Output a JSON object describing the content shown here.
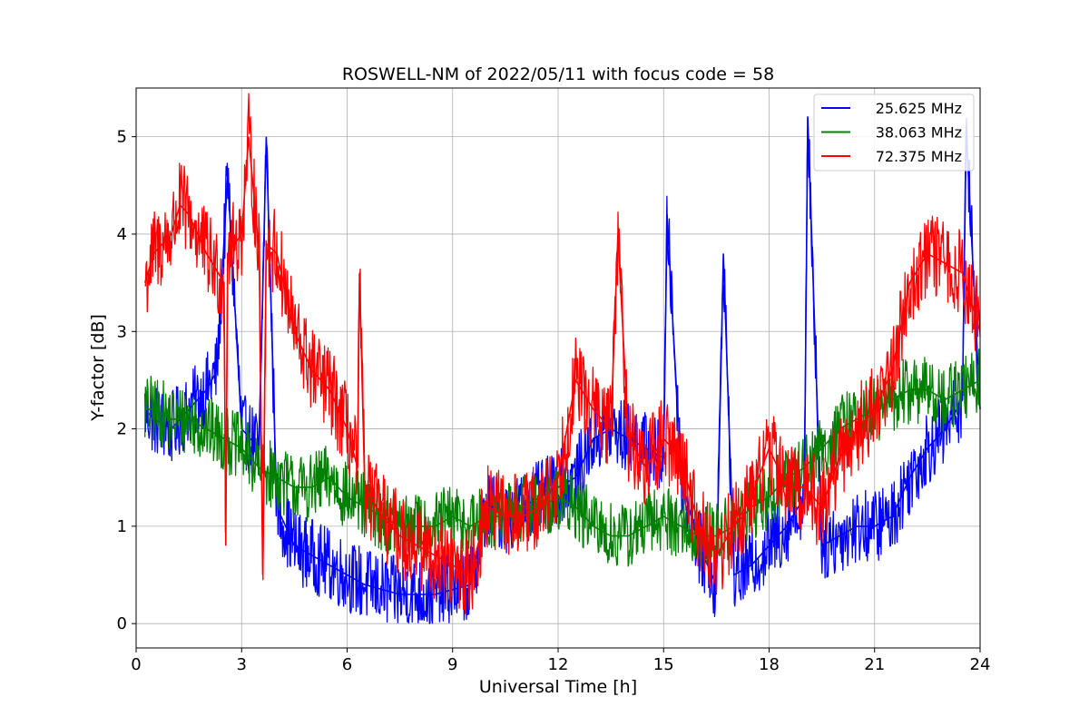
{
  "chart_data": {
    "type": "line",
    "title": "ROSWELL-NM of 2022/05/11 with focus code = 58",
    "xlabel": "Universal Time [h]",
    "ylabel": "Y-factor [dB]",
    "xlim": [
      0,
      24
    ],
    "ylim": [
      -0.25,
      5.5
    ],
    "xticks": [
      0,
      3,
      6,
      9,
      12,
      15,
      18,
      21,
      24
    ],
    "yticks": [
      0,
      1,
      2,
      3,
      4,
      5
    ],
    "grid": true,
    "legend_position": "top-right",
    "series": [
      {
        "name": "25.625 MHz",
        "color": "#0000ff",
        "x": [
          0.25,
          0.5,
          1.0,
          1.5,
          2.0,
          2.3,
          2.6,
          3.0,
          3.5,
          3.7,
          4.0,
          4.5,
          5.0,
          5.5,
          6.0,
          6.5,
          7.0,
          7.5,
          8.0,
          8.5,
          9.0,
          9.5,
          10.0,
          10.5,
          11.0,
          11.5,
          12.0,
          12.5,
          13.0,
          13.5,
          14.0,
          14.5,
          15.0,
          15.1,
          15.5,
          16.0,
          16.5,
          16.7,
          17.0,
          17.5,
          18.0,
          18.5,
          19.0,
          19.1,
          19.5,
          20.0,
          20.5,
          21.0,
          21.5,
          22.0,
          22.5,
          23.0,
          23.5,
          23.6,
          24.0
        ],
        "y": [
          2.2,
          2.1,
          2.0,
          2.2,
          2.4,
          2.6,
          4.6,
          2.0,
          1.8,
          5.0,
          1.2,
          0.8,
          0.7,
          0.6,
          0.5,
          0.4,
          0.35,
          0.3,
          0.3,
          0.3,
          0.35,
          0.4,
          1.2,
          1.1,
          1.2,
          1.3,
          1.4,
          1.5,
          1.9,
          2.0,
          1.9,
          1.8,
          1.7,
          4.2,
          1.5,
          0.8,
          0.4,
          3.8,
          0.5,
          0.6,
          0.8,
          1.0,
          1.3,
          5.2,
          0.8,
          0.9,
          1.0,
          1.0,
          1.1,
          1.5,
          1.8,
          2.0,
          2.3,
          5.1,
          2.2
        ]
      },
      {
        "name": "38.063 MHz",
        "color": "#008000",
        "x": [
          0.25,
          0.5,
          1.0,
          1.5,
          2.0,
          2.5,
          3.0,
          3.5,
          4.0,
          4.5,
          5.0,
          5.5,
          6.0,
          6.5,
          7.0,
          7.5,
          8.0,
          8.5,
          9.0,
          9.5,
          10.0,
          10.5,
          11.0,
          11.5,
          12.0,
          12.5,
          13.0,
          13.5,
          14.0,
          14.5,
          15.0,
          15.5,
          16.0,
          16.5,
          17.0,
          17.5,
          18.0,
          18.5,
          19.0,
          19.5,
          20.0,
          20.5,
          21.0,
          21.5,
          22.0,
          22.5,
          23.0,
          23.5,
          24.0
        ],
        "y": [
          2.2,
          2.2,
          2.1,
          2.1,
          2.0,
          1.9,
          1.8,
          1.6,
          1.5,
          1.4,
          1.4,
          1.5,
          1.3,
          1.2,
          1.1,
          1.0,
          1.0,
          1.0,
          1.1,
          1.0,
          1.1,
          1.1,
          1.2,
          1.2,
          1.3,
          1.2,
          1.0,
          0.9,
          0.9,
          1.0,
          1.1,
          1.0,
          0.9,
          0.9,
          1.0,
          1.2,
          1.3,
          1.5,
          1.6,
          1.8,
          2.0,
          2.1,
          2.2,
          2.3,
          2.4,
          2.4,
          2.3,
          2.4,
          2.5
        ]
      },
      {
        "name": "72.375 MHz",
        "color": "#ff0000",
        "x": [
          0.25,
          0.5,
          1.0,
          1.25,
          1.5,
          2.0,
          2.5,
          2.55,
          2.6,
          3.0,
          3.2,
          3.5,
          3.6,
          3.7,
          4.0,
          4.5,
          5.0,
          5.5,
          6.0,
          6.3,
          6.35,
          6.5,
          7.0,
          7.5,
          8.0,
          8.5,
          9.0,
          9.5,
          10.0,
          10.5,
          11.0,
          11.5,
          12.0,
          12.5,
          13.0,
          13.5,
          13.7,
          14.0,
          14.5,
          15.0,
          15.5,
          16.0,
          16.5,
          17.0,
          17.5,
          18.0,
          18.5,
          19.0,
          19.5,
          20.0,
          20.5,
          21.0,
          21.5,
          22.0,
          22.5,
          23.0,
          23.5,
          24.0
        ],
        "y": [
          3.5,
          3.8,
          4.0,
          4.3,
          4.2,
          3.8,
          3.5,
          0.8,
          3.8,
          4.0,
          5.0,
          3.8,
          0.5,
          3.9,
          3.8,
          3.0,
          2.6,
          2.4,
          2.0,
          1.6,
          3.6,
          1.4,
          1.1,
          0.9,
          0.8,
          0.7,
          0.6,
          0.5,
          1.2,
          1.1,
          1.1,
          1.2,
          1.5,
          2.5,
          2.2,
          2.0,
          4.0,
          1.9,
          1.6,
          1.9,
          1.7,
          1.0,
          0.7,
          1.0,
          1.3,
          1.8,
          1.4,
          1.4,
          1.2,
          1.7,
          2.0,
          2.2,
          2.6,
          3.5,
          3.8,
          3.7,
          3.6,
          3.0
        ]
      }
    ]
  }
}
